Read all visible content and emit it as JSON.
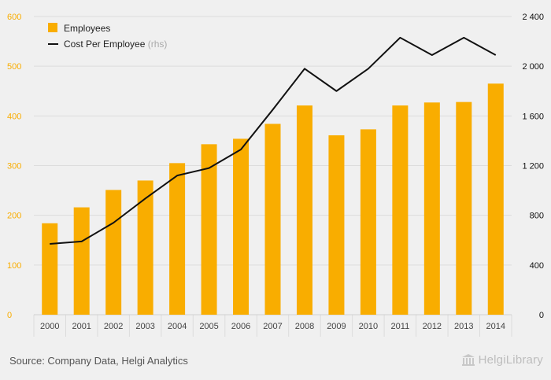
{
  "chart_data": {
    "type": "bar",
    "categories": [
      "2000",
      "2001",
      "2002",
      "2003",
      "2004",
      "2005",
      "2006",
      "2007",
      "2008",
      "2009",
      "2010",
      "2011",
      "2012",
      "2013",
      "2014"
    ],
    "series": [
      {
        "name": "Employees",
        "type": "bar",
        "axis": "left",
        "color": "#f9ad00",
        "values": [
          184,
          216,
          251,
          270,
          305,
          343,
          354,
          384,
          421,
          361,
          373,
          421,
          427,
          428,
          465
        ]
      },
      {
        "name": "Cost Per Employee",
        "name_suffix": "(rhs)",
        "type": "line",
        "axis": "right",
        "color": "#111111",
        "values": [
          570,
          590,
          740,
          935,
          1120,
          1180,
          1330,
          1650,
          1980,
          1800,
          1980,
          2230,
          2090,
          2230,
          2090
        ]
      }
    ],
    "y_left": {
      "min": 0,
      "max": 600,
      "ticks": [
        0,
        100,
        200,
        300,
        400,
        500,
        600
      ],
      "tick_color": "#f9ad00"
    },
    "y_right": {
      "min": 0,
      "max": 2400,
      "ticks": [
        0,
        400,
        800,
        1200,
        1600,
        2000,
        2400
      ],
      "tick_labels": [
        "0",
        "400",
        "800",
        "1 200",
        "1 600",
        "2 000",
        "2 400"
      ],
      "tick_color": "#111111"
    },
    "grid": true,
    "legend_position": "top-left"
  },
  "footer": {
    "source": "Source: Company Data, Helgi Analytics",
    "brand": "HelgiLibrary"
  }
}
